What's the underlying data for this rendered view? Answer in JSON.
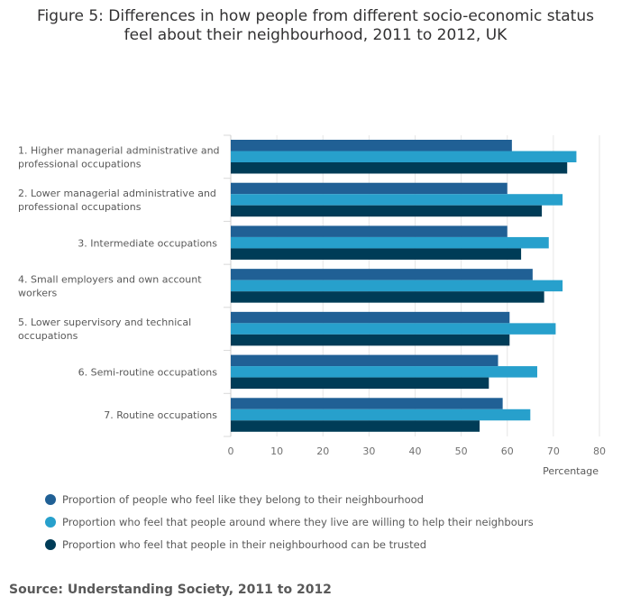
{
  "title_lines": [
    "Figure 5: Differences in how people from different socio-economic status",
    "feel about their neighbourhood, 2011 to 2012, UK"
  ],
  "source": "Source: Understanding Society, 2011 to 2012",
  "chart_data": {
    "type": "bar",
    "orientation": "horizontal",
    "title": "Figure 5: Differences in how people from different socio-economic status feel about their neighbourhood, 2011 to 2012, UK",
    "xlabel": "Percentage",
    "ylabel": "",
    "xlim": [
      0,
      80
    ],
    "xticks": [
      0,
      10,
      20,
      30,
      40,
      50,
      60,
      70,
      80
    ],
    "grid": true,
    "categories": [
      [
        "1. Higher managerial administrative and",
        "professional occupations"
      ],
      [
        "2. Lower managerial administrative and",
        "professional occupations"
      ],
      [
        "3. Intermediate occupations"
      ],
      [
        "4. Small employers and own account",
        "workers"
      ],
      [
        "5. Lower supervisory and technical",
        "occupations"
      ],
      [
        "6. Semi-routine occupations"
      ],
      [
        "7. Routine occupations"
      ]
    ],
    "series": [
      {
        "name": "Proportion of people who feel like they belong to their neighbourhood",
        "color": "#206095",
        "values": [
          61,
          60,
          60,
          65.5,
          60.5,
          58,
          59
        ]
      },
      {
        "name": "Proportion who feel that people around where they live are willing to help their neighbours",
        "color": "#27a0cc",
        "values": [
          75,
          72,
          69,
          72,
          70.5,
          66.5,
          65
        ]
      },
      {
        "name": "Proportion who feel that people in their neighbourhood can be trusted",
        "color": "#003c57",
        "values": [
          73,
          67.5,
          63,
          68,
          60.5,
          56,
          54
        ]
      }
    ],
    "legend_position": "bottom"
  }
}
